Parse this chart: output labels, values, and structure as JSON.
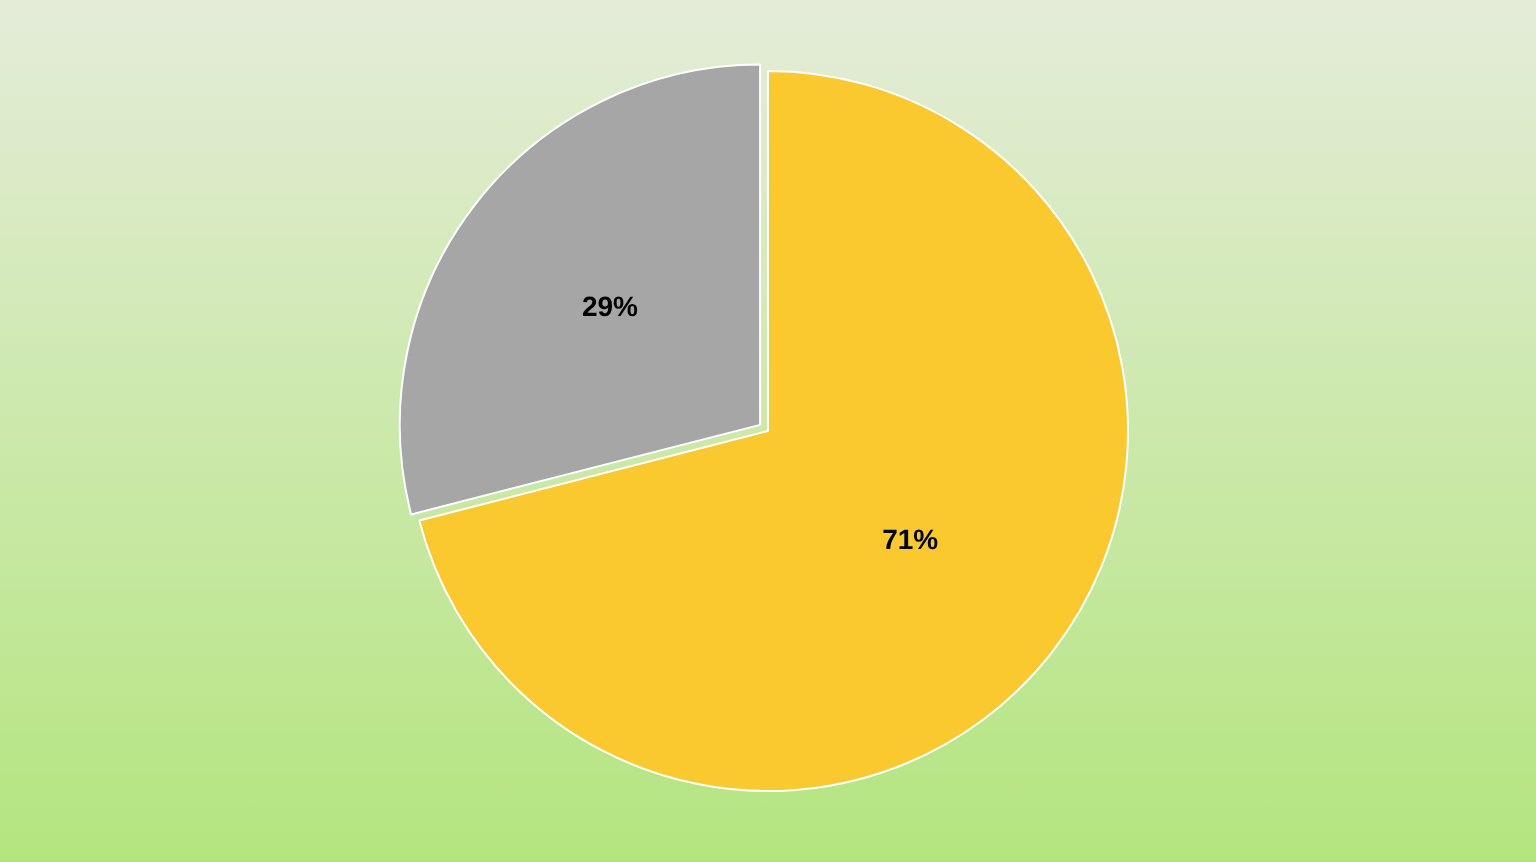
{
  "chart_data": {
    "type": "pie",
    "categories": [
      null,
      null
    ],
    "values": [
      71,
      29
    ],
    "colors": [
      "#f9c92e",
      "#a6a6a6"
    ],
    "value_labels": [
      "71%",
      "29%"
    ],
    "legend": false
  }
}
